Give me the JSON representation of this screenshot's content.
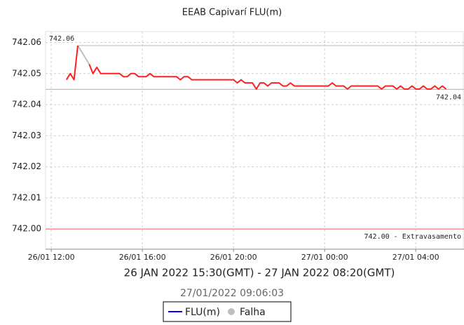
{
  "chart_data": {
    "type": "line",
    "title": "EEAB Capivarí FLU(m)",
    "subtitle": "26 JAN 2022 15:30(GMT) - 27 JAN 2022 08:20(GMT)",
    "timestamp": "27/01/2022 09:06:03",
    "x": [
      "26/01 12:40",
      "26/01 12:50",
      "26/01 13:00",
      "26/01 13:10",
      "26/01 13:20",
      "26/01 13:30",
      "26/01 13:40",
      "26/01 13:50",
      "26/01 14:00",
      "26/01 14:10",
      "26/01 14:20",
      "26/01 14:30",
      "26/01 14:40",
      "26/01 14:50",
      "26/01 15:00",
      "26/01 15:10",
      "26/01 15:20",
      "26/01 15:30",
      "26/01 15:40",
      "26/01 15:50",
      "26/01 16:00",
      "26/01 16:10",
      "26/01 16:20",
      "26/01 16:30",
      "26/01 16:40",
      "26/01 16:50",
      "26/01 17:00",
      "26/01 17:10",
      "26/01 17:20",
      "26/01 17:30",
      "26/01 17:40",
      "26/01 17:50",
      "26/01 18:00",
      "26/01 18:10",
      "26/01 18:20",
      "26/01 18:30",
      "26/01 18:40",
      "26/01 18:50",
      "26/01 19:00",
      "26/01 19:10",
      "26/01 19:20",
      "26/01 19:30",
      "26/01 19:40",
      "26/01 19:50",
      "26/01 20:00",
      "26/01 20:10",
      "26/01 20:20",
      "26/01 20:30",
      "26/01 20:40",
      "26/01 20:50",
      "26/01 21:00",
      "26/01 21:10",
      "26/01 21:20",
      "26/01 21:30",
      "26/01 21:40",
      "26/01 21:50",
      "26/01 22:00",
      "26/01 22:10",
      "26/01 22:20",
      "26/01 22:30",
      "26/01 22:40",
      "26/01 22:50",
      "26/01 23:00",
      "26/01 23:10",
      "26/01 23:20",
      "26/01 23:30",
      "26/01 23:40",
      "26/01 23:50",
      "27/01 00:00",
      "27/01 00:10",
      "27/01 00:20",
      "27/01 00:30",
      "27/01 00:40",
      "27/01 00:50",
      "27/01 01:00",
      "27/01 01:10",
      "27/01 01:20",
      "27/01 01:30",
      "27/01 01:40",
      "27/01 01:50",
      "27/01 02:00",
      "27/01 02:10",
      "27/01 02:20",
      "27/01 02:30",
      "27/01 02:40",
      "27/01 02:50",
      "27/01 03:00",
      "27/01 03:10",
      "27/01 03:20",
      "27/01 03:30",
      "27/01 03:40",
      "27/01 03:50",
      "27/01 04:00",
      "27/01 04:10",
      "27/01 04:20",
      "27/01 04:30",
      "27/01 04:40",
      "27/01 04:50",
      "27/01 05:00",
      "27/01 05:10",
      "27/01 05:20"
    ],
    "series": [
      {
        "name": "FLU(m)",
        "color": "#ff2020",
        "legend_color": "#0000ff",
        "marker": "line",
        "values": [
          742.048,
          742.05,
          742.048,
          742.059,
          null,
          null,
          742.053,
          742.05,
          742.052,
          742.05,
          742.05,
          742.05,
          742.05,
          742.05,
          742.05,
          742.049,
          742.049,
          742.05,
          742.05,
          742.049,
          742.049,
          742.049,
          742.05,
          742.049,
          742.049,
          742.049,
          742.049,
          742.049,
          742.049,
          742.049,
          742.048,
          742.049,
          742.049,
          742.048,
          742.048,
          742.048,
          742.048,
          742.048,
          742.048,
          742.048,
          742.048,
          742.048,
          742.048,
          742.048,
          742.048,
          742.047,
          742.048,
          742.047,
          742.047,
          742.047,
          742.045,
          742.047,
          742.047,
          742.046,
          742.047,
          742.047,
          742.047,
          742.046,
          742.046,
          742.047,
          742.046,
          742.046,
          742.046,
          742.046,
          742.046,
          742.046,
          742.046,
          742.046,
          742.046,
          742.046,
          742.047,
          742.046,
          742.046,
          742.046,
          742.045,
          742.046,
          742.046,
          742.046,
          742.046,
          742.046,
          742.046,
          742.046,
          742.046,
          742.045,
          742.046,
          742.046,
          742.046,
          742.045,
          742.046,
          742.045,
          742.045,
          742.046,
          742.045,
          742.045,
          742.046,
          742.045,
          742.045,
          742.046,
          742.045,
          742.046,
          742.045
        ]
      },
      {
        "name": "Falha",
        "color": "#c0c0c0",
        "legend_color": "#c0c0c0",
        "marker": "dot",
        "values": [
          null,
          null,
          null,
          742.059,
          742.057,
          742.055,
          742.053,
          null,
          null,
          null,
          null,
          null,
          null,
          null,
          null,
          null,
          null,
          null,
          null,
          null,
          null,
          null,
          null,
          null,
          null,
          null,
          null,
          null,
          null,
          null,
          null,
          null,
          null,
          null,
          null,
          null,
          null,
          null,
          null,
          null,
          null,
          null,
          null,
          null,
          null,
          null,
          null,
          null,
          null,
          null,
          null,
          null,
          null,
          null,
          null,
          null,
          null,
          null,
          null,
          null,
          null,
          null,
          null,
          null,
          null,
          null,
          null,
          null,
          null,
          null,
          null,
          null,
          null,
          null,
          null,
          null,
          null,
          null,
          null,
          null,
          null,
          null,
          null,
          null,
          null,
          null,
          null,
          null,
          null,
          null,
          null,
          null,
          null,
          null,
          null,
          null,
          null,
          null,
          null,
          null,
          null
        ]
      }
    ],
    "annotations": [
      {
        "text": "742.06",
        "value": 742.059,
        "x": "26/01 13:10",
        "color": "#c0c0c0"
      },
      {
        "text": "742.04",
        "value": 742.0449,
        "color": "#c0c0c0"
      },
      {
        "text": "742.00 - Extravasamento",
        "value": 742.0,
        "color": "#ff8080"
      }
    ],
    "xlim": [
      "26/01 11:45",
      "27/01 06:07"
    ],
    "xticks": [
      "26/01 12:00",
      "26/01 16:00",
      "26/01 20:00",
      "27/01 00:00",
      "27/01 04:00"
    ],
    "ylim": [
      741.9935,
      742.0635
    ],
    "yticks": [
      {
        "value": 742,
        "label": "742.00"
      },
      742.01,
      742.02,
      742.03,
      742.04,
      742.05,
      742.06
    ],
    "grid": true
  }
}
